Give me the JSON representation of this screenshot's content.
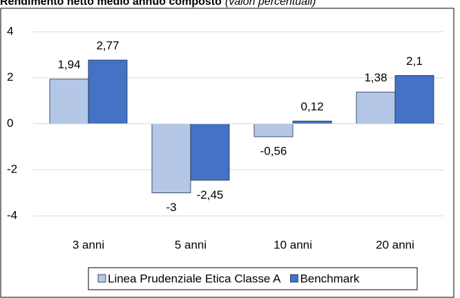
{
  "chart_data": {
    "type": "bar",
    "title": "Rendimento netto medio annuo composto",
    "subtitle": "(valori percentuali)",
    "categories": [
      "3 anni",
      "5 anni",
      "10 anni",
      "20 anni"
    ],
    "series": [
      {
        "name": "Linea Prudenziale Etica Classe A",
        "color": "#b4c7e7",
        "values": [
          1.94,
          -3,
          -0.56,
          1.38
        ],
        "value_labels": [
          "1,94",
          "-3",
          "-0,56",
          "1,38"
        ]
      },
      {
        "name": "Benchmark",
        "color": "#4472c4",
        "values": [
          2.77,
          -2.45,
          0.12,
          2.1
        ],
        "value_labels": [
          "2,77",
          "-2,45",
          "0,12",
          "2,1"
        ]
      }
    ],
    "ylim": [
      -4,
      4
    ],
    "yticks": [
      -4,
      -2,
      0,
      2,
      4
    ],
    "grid": true,
    "legend": "bottom"
  }
}
